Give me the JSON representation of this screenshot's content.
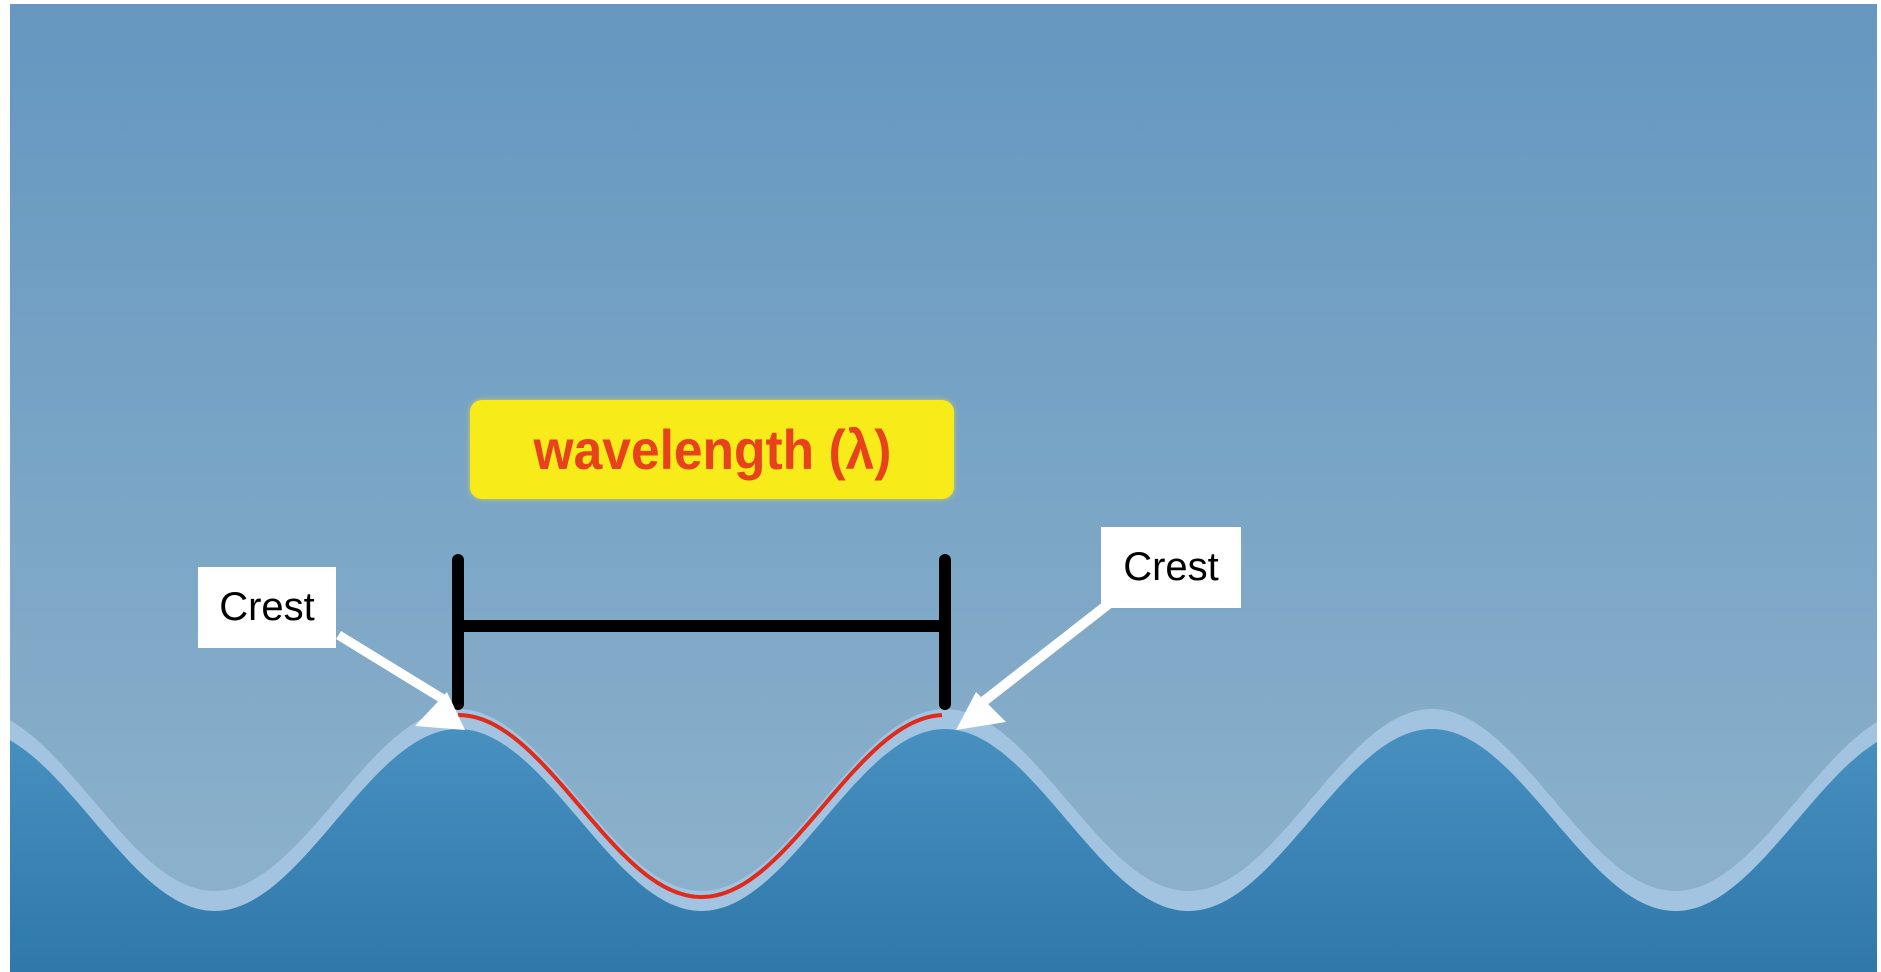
{
  "diagram": {
    "wavelength_label": "wavelength (λ)",
    "crest_left_label": "Crest",
    "crest_right_label": "Crest"
  },
  "colors": {
    "sky_top": "#6597c0",
    "sky_bottom": "#8fb3cc",
    "water": "#3a85b5",
    "wave_foam": "#a3c4e0",
    "highlight_curve": "#e02a1a",
    "badge_bg": "#f7eb1a",
    "badge_text": "#e8421c",
    "marker": "#000000"
  },
  "icons": {
    "left_arrow": "arrow-icon",
    "right_arrow": "arrow-icon"
  }
}
